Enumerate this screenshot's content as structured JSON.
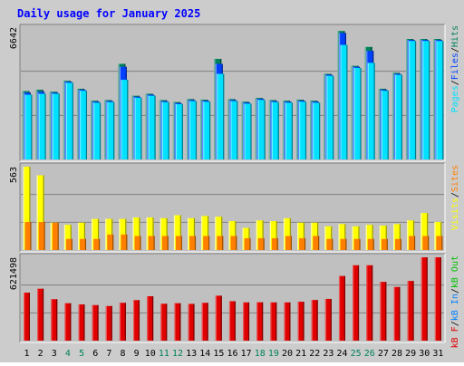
{
  "title": "Daily usage for January 2025",
  "colors": {
    "frame_bg": "#CCCCCC",
    "panel_bg": "#C0C0C0",
    "title": "#0000FF",
    "hits": "#00805C",
    "files": "#0040FF",
    "pages": "#00E0FF",
    "visits": "#FFFF00",
    "sites": "#FF8000",
    "kb_f": "#E00000",
    "kb_in": "#0080FF",
    "kb_out": "#00C000",
    "weekend_label": "#00805C"
  },
  "panels": {
    "top": {
      "max_label": "6642",
      "legend": [
        {
          "text": "Pages",
          "color_key": "pages"
        },
        {
          "text": "/",
          "color_key": "sep"
        },
        {
          "text": "Files",
          "color_key": "files"
        },
        {
          "text": "/",
          "color_key": "sep"
        },
        {
          "text": "Hits",
          "color_key": "hits"
        }
      ]
    },
    "middle": {
      "max_label": "563",
      "legend": [
        {
          "text": "Visits",
          "color_key": "visits"
        },
        {
          "text": "/",
          "color_key": "sep"
        },
        {
          "text": "Sites",
          "color_key": "sites"
        }
      ]
    },
    "bottom": {
      "max_label": "621498",
      "legend": [
        {
          "text": "kB F",
          "color_key": "kb_f"
        },
        {
          "text": "/",
          "color_key": "sep"
        },
        {
          "text": "kB In",
          "color_key": "kb_in"
        },
        {
          "text": "/",
          "color_key": "sep"
        },
        {
          "text": "kB Out",
          "color_key": "kb_out"
        }
      ]
    }
  },
  "chart_data": {
    "type": "bar",
    "title": "Daily usage for January 2025",
    "categories": [
      "1",
      "2",
      "3",
      "4",
      "5",
      "6",
      "7",
      "8",
      "9",
      "10",
      "11",
      "12",
      "13",
      "14",
      "15",
      "16",
      "17",
      "18",
      "19",
      "20",
      "21",
      "22",
      "23",
      "24",
      "25",
      "26",
      "27",
      "28",
      "29",
      "30",
      "31"
    ],
    "weekend_days": [
      "4",
      "5",
      "11",
      "12",
      "18",
      "19",
      "25",
      "26"
    ],
    "panels": [
      {
        "name": "top",
        "ylim": [
          0,
          6642
        ],
        "series": [
          {
            "name": "Hits",
            "values": [
              3430,
              3500,
              3400,
              3950,
              3550,
              2950,
              2980,
              4800,
              3200,
              3300,
              2980,
              2880,
              3030,
              3000,
              5050,
              3030,
              2900,
              3090,
              2980,
              2950,
              3000,
              2950,
              4300,
              6450,
              4700,
              5650,
              3550,
              4350,
              6050,
              6050,
              6050
            ]
          },
          {
            "name": "Files",
            "values": [
              3350,
              3400,
              3350,
              3900,
              3500,
              2900,
              2930,
              4650,
              3150,
              3250,
              2930,
              2830,
              2980,
              2950,
              4800,
              2980,
              2850,
              3040,
              2930,
              2900,
              2950,
              2900,
              4250,
              6350,
              4650,
              5450,
              3500,
              4300,
              6000,
              6000,
              6000
            ]
          },
          {
            "name": "Pages",
            "values": [
              3250,
              3300,
              3300,
              3850,
              3450,
              2850,
              2880,
              4000,
              3100,
              3200,
              2880,
              2780,
              2930,
              2900,
              4300,
              2930,
              2800,
              2990,
              2880,
              2850,
              2900,
              2850,
              4200,
              5750,
              4600,
              4850,
              3450,
              4250,
              5950,
              5950,
              5950
            ]
          }
        ]
      },
      {
        "name": "middle",
        "ylim": [
          0,
          563
        ],
        "series": [
          {
            "name": "Visits",
            "values": [
              563,
              505,
              185,
              170,
              185,
              210,
              210,
              210,
              220,
              220,
              215,
              235,
              215,
              230,
              225,
              195,
              150,
              200,
              195,
              215,
              185,
              185,
              160,
              175,
              160,
              170,
              165,
              175,
              200,
              250,
              190
            ]
          },
          {
            "name": "Sites",
            "values": [
              190,
              190,
              185,
              75,
              75,
              75,
              105,
              105,
              95,
              95,
              95,
              95,
              95,
              95,
              95,
              95,
              80,
              80,
              80,
              95,
              80,
              95,
              75,
              75,
              75,
              75,
              75,
              75,
              95,
              95,
              95
            ]
          }
        ]
      },
      {
        "name": "bottom",
        "ylim": [
          0,
          621498
        ],
        "series": [
          {
            "name": "kB F",
            "values": [
              358000,
              387000,
              309000,
              279000,
              270000,
              265000,
              258000,
              282000,
              302000,
              331000,
              275000,
              279000,
              274000,
              282000,
              335000,
              294000,
              285000,
              286000,
              285000,
              285000,
              290000,
              303000,
              311000,
              482000,
              562000,
              562000,
              438000,
              400000,
              445000,
              621498,
              621498
            ]
          },
          {
            "name": "kB In",
            "values": [
              0,
              0,
              0,
              0,
              0,
              0,
              0,
              0,
              0,
              0,
              0,
              0,
              0,
              0,
              0,
              0,
              0,
              0,
              0,
              0,
              0,
              0,
              0,
              0,
              0,
              0,
              0,
              0,
              0,
              0,
              0
            ]
          },
          {
            "name": "kB Out",
            "values": [
              0,
              0,
              0,
              0,
              0,
              0,
              0,
              0,
              0,
              0,
              0,
              0,
              0,
              0,
              0,
              0,
              0,
              0,
              0,
              0,
              0,
              0,
              0,
              0,
              0,
              0,
              0,
              0,
              0,
              0,
              0
            ]
          }
        ]
      }
    ]
  }
}
